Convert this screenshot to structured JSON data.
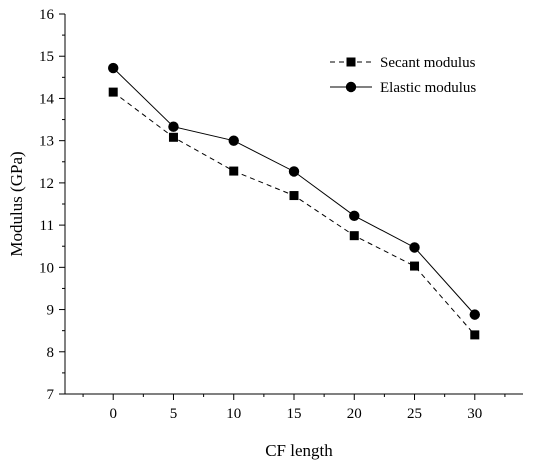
{
  "chart_data": {
    "type": "line",
    "title": "",
    "xlabel": "CF length",
    "ylabel": "Modulus (GPa)",
    "x": [
      0,
      5,
      10,
      15,
      20,
      25,
      30
    ],
    "x_ticks": [
      0,
      5,
      10,
      15,
      20,
      25,
      30
    ],
    "y_ticks": [
      7,
      8,
      9,
      10,
      11,
      12,
      13,
      14,
      15,
      16
    ],
    "xlim": [
      -4,
      34
    ],
    "ylim": [
      7,
      16
    ],
    "grid": false,
    "legend_position": "top-right",
    "series": [
      {
        "name": "Secant modulus",
        "marker": "square",
        "line_style": "dashed",
        "color": "#000000",
        "values": [
          14.15,
          13.08,
          12.28,
          11.7,
          10.75,
          10.03,
          8.4
        ]
      },
      {
        "name": "Elastic modulus",
        "marker": "circle",
        "line_style": "solid",
        "color": "#000000",
        "values": [
          14.72,
          13.33,
          13.0,
          12.27,
          11.22,
          10.47,
          8.88
        ]
      }
    ]
  }
}
